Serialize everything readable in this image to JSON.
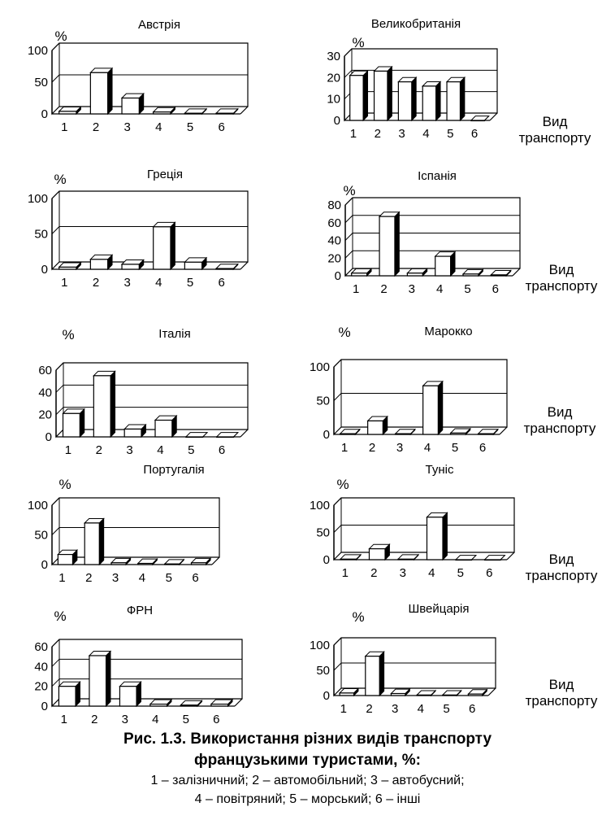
{
  "figure": {
    "caption_line1": "Рис. 1.3. Використання різних видів транспорту",
    "caption_line2": "французькими туристами, %:",
    "legend_line1": "1 – залізничний; 2 – автомобільний; 3 – автобусний;",
    "legend_line2": "4 – повітряний; 5 – морський; 6 – інші",
    "axis_side_label_line1": "Вид",
    "axis_side_label_line2": "транспорту",
    "unit_label": "%"
  },
  "chart_data": [
    {
      "type": "bar",
      "title": "Австрія",
      "categories": [
        "1",
        "2",
        "3",
        "4",
        "5",
        "6"
      ],
      "values": [
        4,
        65,
        25,
        3,
        1,
        1
      ],
      "ylim": [
        0,
        100
      ],
      "yticks": [
        0,
        50,
        100
      ],
      "ylabel": "%",
      "xlabel": ""
    },
    {
      "type": "bar",
      "title": "Великобританія",
      "categories": [
        "1",
        "2",
        "3",
        "4",
        "5",
        "6"
      ],
      "values": [
        21,
        23,
        18,
        16,
        18,
        0
      ],
      "ylim": [
        0,
        30
      ],
      "yticks": [
        0,
        10,
        20,
        30
      ],
      "ylabel": "%",
      "xlabel": "Вид транспорту"
    },
    {
      "type": "bar",
      "title": "Греція",
      "categories": [
        "1",
        "2",
        "3",
        "4",
        "5",
        "6"
      ],
      "values": [
        3,
        14,
        7,
        60,
        10,
        1
      ],
      "ylim": [
        0,
        100
      ],
      "yticks": [
        0,
        50,
        100
      ],
      "ylabel": "%",
      "xlabel": ""
    },
    {
      "type": "bar",
      "title": "Іспанія",
      "categories": [
        "1",
        "2",
        "3",
        "4",
        "5",
        "6"
      ],
      "values": [
        3,
        67,
        3,
        22,
        2,
        1
      ],
      "ylim": [
        0,
        80
      ],
      "yticks": [
        0,
        20,
        40,
        60,
        80
      ],
      "ylabel": "%",
      "xlabel": "Вид транспорту"
    },
    {
      "type": "bar",
      "title": "Італія",
      "categories": [
        "1",
        "2",
        "3",
        "4",
        "5",
        "6"
      ],
      "values": [
        21,
        55,
        7,
        15,
        0,
        0
      ],
      "ylim": [
        0,
        60
      ],
      "yticks": [
        0,
        20,
        40,
        60
      ],
      "ylabel": "%",
      "xlabel": ""
    },
    {
      "type": "bar",
      "title": "Марокко",
      "categories": [
        "1",
        "2",
        "3",
        "4",
        "5",
        "6"
      ],
      "values": [
        1,
        20,
        1,
        72,
        2,
        1
      ],
      "ylim": [
        0,
        100
      ],
      "yticks": [
        0,
        50,
        100
      ],
      "ylabel": "%",
      "xlabel": "Вид транспорту"
    },
    {
      "type": "bar",
      "title": "Португалія",
      "categories": [
        "1",
        "2",
        "3",
        "4",
        "5",
        "6"
      ],
      "values": [
        17,
        70,
        3,
        2,
        1,
        3
      ],
      "ylim": [
        0,
        100
      ],
      "yticks": [
        0,
        50,
        100
      ],
      "ylabel": "%",
      "xlabel": ""
    },
    {
      "type": "bar",
      "title": "Туніс",
      "categories": [
        "1",
        "2",
        "3",
        "4",
        "5",
        "6"
      ],
      "values": [
        1,
        20,
        1,
        78,
        0,
        0
      ],
      "ylim": [
        0,
        100
      ],
      "yticks": [
        0,
        50,
        100
      ],
      "ylabel": "%",
      "xlabel": "Вид транспорту"
    },
    {
      "type": "bar",
      "title": "ФРН",
      "categories": [
        "1",
        "2",
        "3",
        "4",
        "5",
        "6"
      ],
      "values": [
        20,
        51,
        20,
        2,
        1,
        2
      ],
      "ylim": [
        0,
        60
      ],
      "yticks": [
        0,
        20,
        40,
        60
      ],
      "ylabel": "%",
      "xlabel": ""
    },
    {
      "type": "bar",
      "title": "Швейцарія",
      "categories": [
        "1",
        "2",
        "3",
        "4",
        "5",
        "6"
      ],
      "values": [
        5,
        78,
        4,
        1,
        1,
        3
      ],
      "ylim": [
        0,
        100
      ],
      "yticks": [
        0,
        50,
        100
      ],
      "ylabel": "%",
      "xlabel": "Вид транспорту"
    }
  ]
}
